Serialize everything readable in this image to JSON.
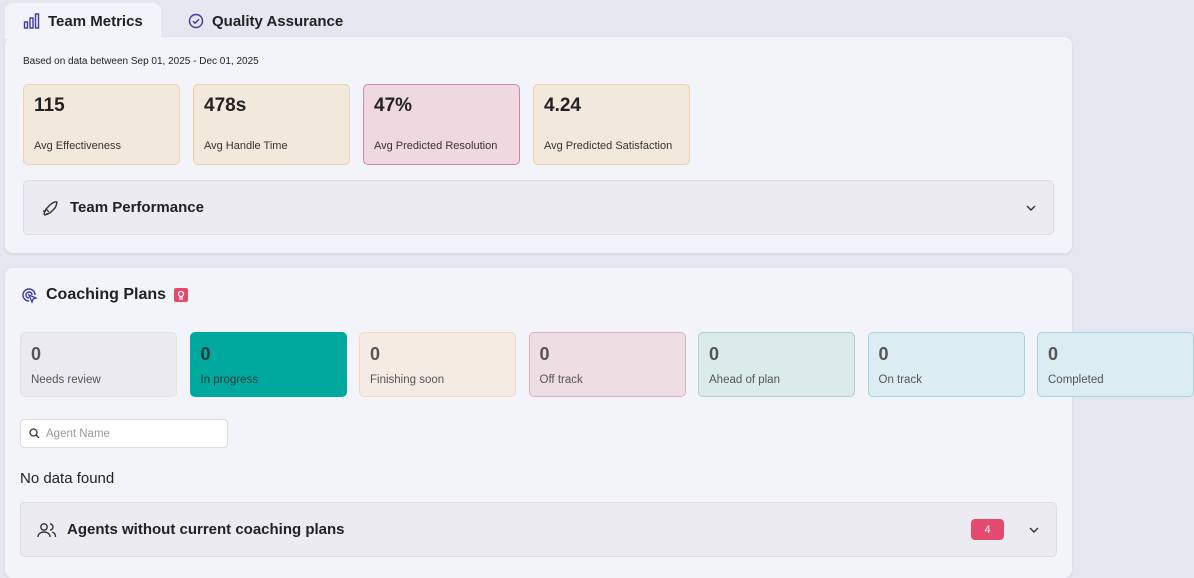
{
  "tabs": [
    {
      "label": "Team Metrics",
      "active": true
    },
    {
      "label": "Quality Assurance",
      "active": false
    }
  ],
  "metrics_panel": {
    "date_range": "Based on data between Sep 01, 2025 - Dec 01, 2025",
    "cards": [
      {
        "value": "115",
        "label": "Avg Effectiveness",
        "tone": "amber"
      },
      {
        "value": "478s",
        "label": "Avg Handle Time",
        "tone": "amber"
      },
      {
        "value": "47%",
        "label": "Avg Predicted Resolution",
        "tone": "rose"
      },
      {
        "value": "4.24",
        "label": "Avg Predicted Satisfaction",
        "tone": "amber"
      }
    ],
    "accordion": "Team Performance"
  },
  "coaching_panel": {
    "title": "Coaching Plans",
    "status_cards": [
      {
        "count": 0,
        "label": "Needs review",
        "tone": "grey"
      },
      {
        "count": 0,
        "label": "In progress",
        "tone": "teal"
      },
      {
        "count": 0,
        "label": "Finishing soon",
        "tone": "sand"
      },
      {
        "count": 0,
        "label": "Off track",
        "tone": "pink"
      },
      {
        "count": 0,
        "label": "Ahead of plan",
        "tone": "mint"
      },
      {
        "count": 0,
        "label": "On track",
        "tone": "sky"
      },
      {
        "count": 0,
        "label": "Completed",
        "tone": "sky"
      }
    ],
    "search_placeholder": "Agent Name",
    "empty_message": "No data found",
    "accordion": "Agents without current coaching plans",
    "accordion_badge": 4
  }
}
